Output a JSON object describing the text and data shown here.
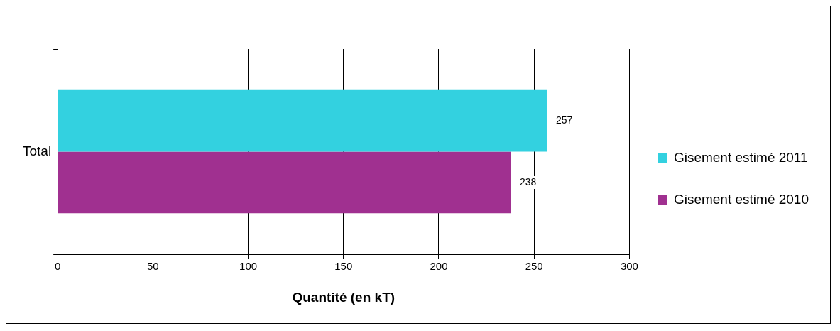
{
  "chart_data": {
    "type": "bar",
    "orientation": "horizontal",
    "categories": [
      "Total"
    ],
    "series": [
      {
        "name": "Gisement estimé 2011",
        "color": "#33d1e0",
        "values": [
          257
        ]
      },
      {
        "name": "Gisement estimé 2010",
        "color": "#a03090",
        "values": [
          238
        ]
      }
    ],
    "xlabel": "Quantité (en kT)",
    "xlim": [
      0,
      300
    ],
    "xticks": [
      0,
      50,
      100,
      150,
      200,
      250,
      300
    ],
    "grid": "x",
    "legend": "right",
    "data_labels": true
  }
}
